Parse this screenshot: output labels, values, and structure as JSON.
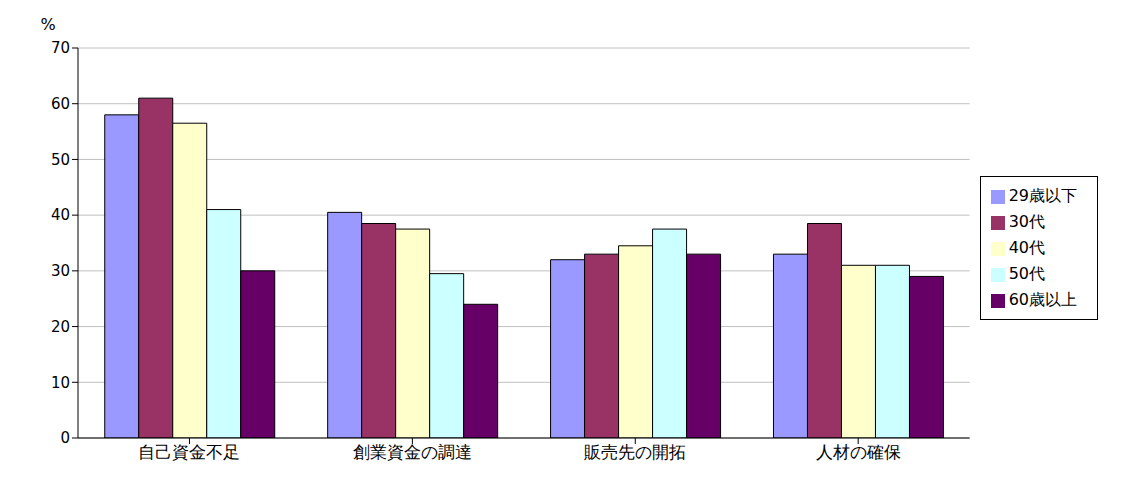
{
  "chart_data": {
    "type": "bar",
    "y_label": "%",
    "categories": [
      "自己資金不足",
      "創業資金の調達",
      "販売先の開拓",
      "人材の確保"
    ],
    "series": [
      {
        "name": "29歳以下",
        "color": "#9999ff",
        "values": [
          58,
          40.5,
          32,
          33
        ]
      },
      {
        "name": "30代",
        "color": "#993366",
        "values": [
          61,
          38.5,
          33,
          38.5
        ]
      },
      {
        "name": "40代",
        "color": "#ffffcc",
        "values": [
          56.5,
          37.5,
          34.5,
          31
        ]
      },
      {
        "name": "50代",
        "color": "#ccffff",
        "values": [
          41,
          29.5,
          37.5,
          31
        ]
      },
      {
        "name": "60歳以上",
        "color": "#660066",
        "values": [
          30,
          24,
          33,
          29
        ]
      }
    ],
    "ylim": [
      0,
      70
    ],
    "yticks": [
      0,
      10,
      20,
      30,
      40,
      50,
      60,
      70
    ],
    "grid": true,
    "legend": "right"
  }
}
